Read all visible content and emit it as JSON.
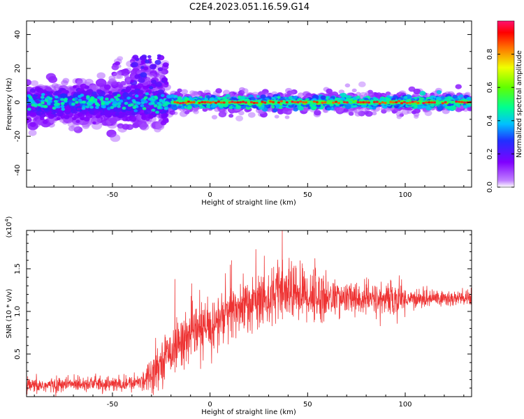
{
  "figure_title": "C2E4.2023.051.16.59.G14",
  "chart_data": [
    {
      "type": "heatmap",
      "title": "C2E4.2023.051.16.59.G14",
      "xlabel": "Height of straight line (km)",
      "ylabel": "Frequency (Hz)",
      "xlim": [
        -94,
        134
      ],
      "ylim": [
        -50,
        48
      ],
      "xticks": [
        -50,
        0,
        50,
        100
      ],
      "yticks": [
        -40,
        -20,
        0,
        20,
        40
      ],
      "colorbar": {
        "label": "Normalized spectral amplitude",
        "range": [
          0,
          1
        ],
        "ticks": [
          0.0,
          0.2,
          0.4,
          0.6,
          0.8
        ],
        "colormap": "rainbow (purple-blue-cyan-green-yellow-red)"
      },
      "features": [
        {
          "region": "x from -94 to -22",
          "description": "broad scattered energy, frequency about -15 to +10 Hz, amplitude mostly 0.1-0.4"
        },
        {
          "region": "x from -45 to -22",
          "description": "weak patches extending up to about +28 Hz"
        },
        {
          "region": "x from -20 to 134",
          "description": "narrow band centred near 0 Hz, width about +/-4 Hz, core amplitude 0.8-1.0"
        }
      ]
    },
    {
      "type": "line",
      "xlabel": "Height of straight line (km)",
      "ylabel": "SNR (10 * v/v)",
      "multiplier_label": "(x10",
      "multiplier_exp": "4",
      "multiplier_close": ")",
      "xlim": [
        -94,
        134
      ],
      "ylim": [
        0,
        1.95
      ],
      "xticks": [
        -50,
        0,
        50,
        100
      ],
      "yticks": [
        0.5,
        1.0,
        1.5
      ],
      "color": "#ee3333",
      "series": [
        {
          "x": [
            -94,
            -85,
            -75,
            -65,
            -55,
            -45,
            -38,
            -33,
            -28,
            -24,
            -20,
            -16,
            -12,
            -8,
            -4,
            0,
            5,
            10,
            15,
            20,
            25,
            30,
            35,
            40,
            45,
            50,
            55,
            60,
            65,
            70,
            75,
            80,
            85,
            90,
            95,
            100,
            105,
            110,
            115,
            120,
            125,
            130,
            134
          ],
          "y": [
            0.12,
            0.13,
            0.14,
            0.16,
            0.15,
            0.14,
            0.16,
            0.22,
            0.32,
            0.45,
            0.55,
            0.62,
            0.7,
            0.75,
            0.78,
            0.8,
            0.9,
            0.98,
            1.05,
            1.1,
            1.13,
            1.17,
            1.2,
            1.22,
            1.22,
            1.2,
            1.18,
            1.17,
            1.16,
            1.15,
            1.15,
            1.14,
            1.14,
            1.14,
            1.14,
            1.15,
            1.15,
            1.15,
            1.16,
            1.15,
            1.15,
            1.15,
            1.15
          ]
        }
      ],
      "notable_spikes": [
        {
          "x": -18,
          "y": 1.38
        },
        {
          "x": 11,
          "y": 1.6
        },
        {
          "x": 37,
          "y": 1.95
        }
      ]
    }
  ]
}
